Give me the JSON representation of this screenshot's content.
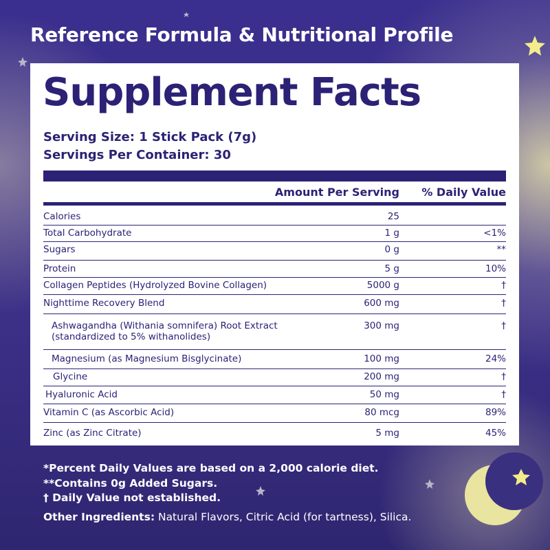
{
  "header": {
    "title": "Reference Formula & Nutritional Profile"
  },
  "panel": {
    "title": "Supplement Facts",
    "serving_size": "Serving Size: 1 Stick Pack (7g)",
    "servings_per_container": "Servings Per Container: 30",
    "columns": [
      "Amount Per Serving",
      "% Daily Value"
    ],
    "rows": [
      {
        "name": "Calories",
        "amount": "25",
        "dv": ""
      },
      {
        "name": "Total Carbohydrate",
        "amount": "1 g",
        "dv": "<1%"
      },
      {
        "name": "Sugars",
        "amount": "0 g",
        "dv": "**"
      },
      {
        "name": "Protein",
        "amount": "5 g",
        "dv": "10%"
      },
      {
        "name": "Collagen Peptides (Hydrolyzed Bovine Collagen)",
        "amount": "5000 g",
        "dv": "†"
      },
      {
        "name": "Nighttime Recovery Blend",
        "amount": "600 mg",
        "dv": "†"
      },
      {
        "name": [
          "Ashwagandha (Withania somnifera) Root Extract",
          "(standardized to 5% withanolides)"
        ],
        "amount": "300 mg",
        "dv": "†"
      },
      {
        "name": "Magnesium (as Magnesium Bisglycinate)",
        "amount": "100 mg",
        "dv": "24%"
      },
      {
        "name": "Glycine",
        "amount": "200 mg",
        "dv": "†"
      },
      {
        "name": "Hyaluronic Acid",
        "amount": "50 mg",
        "dv": "†"
      },
      {
        "name": "Vitamin C (as Ascorbic Acid)",
        "amount": "80 mcg",
        "dv": "89%"
      },
      {
        "name": "Zinc (as Zinc Citrate)",
        "amount": "5 mg",
        "dv": "45%"
      }
    ]
  },
  "footnotes": [
    "*Percent Daily Values are based on a 2,000 calorie diet.",
    "**Contains 0g Added Sugars.",
    "† Daily Value not established."
  ],
  "other_ingredients": {
    "label": "Other Ingredients:",
    "text": "Natural Flavors, Citric Acid (for tartness), Silica."
  }
}
